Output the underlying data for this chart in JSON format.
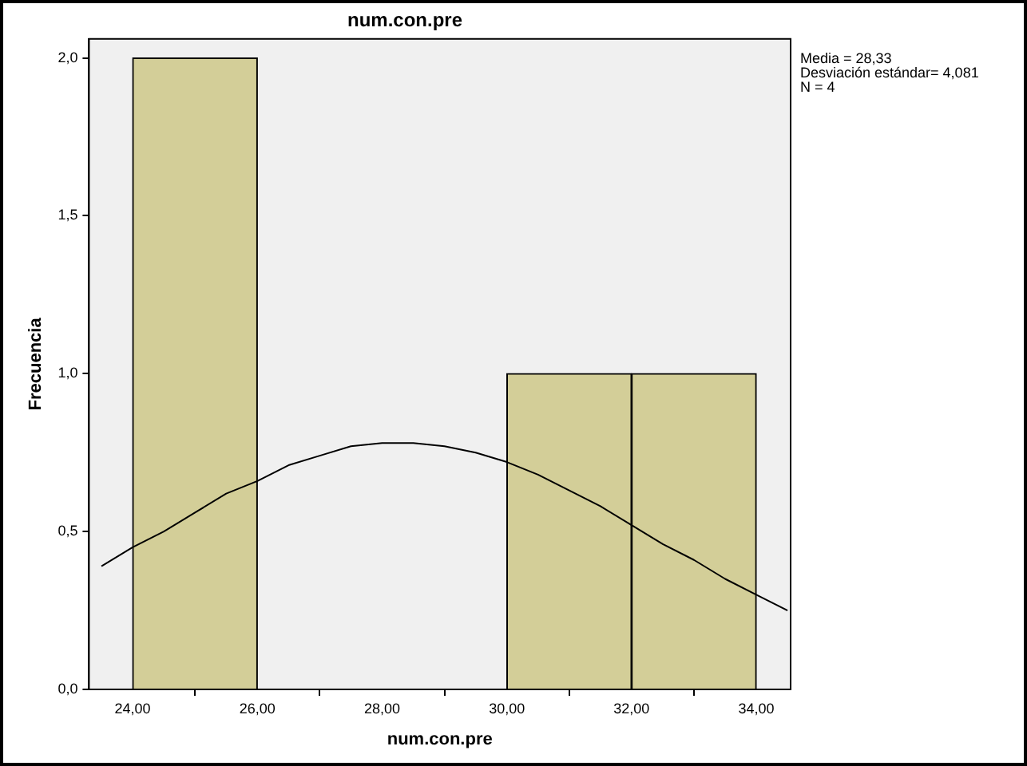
{
  "chart_data": {
    "type": "histogram",
    "title": "num.con.pre",
    "xlabel": "num.con.pre",
    "ylabel": "Frecuencia",
    "bins": [
      24,
      26,
      28,
      30,
      32,
      34
    ],
    "series": [
      {
        "type": "histogram",
        "color": "#d3ce98",
        "values": [
          2,
          0,
          0,
          1,
          1
        ]
      },
      {
        "type": "line",
        "color": "#000000",
        "marker": "none",
        "x": [
          23.5,
          24,
          24.5,
          25,
          25.5,
          26,
          26.5,
          27,
          27.5,
          28,
          28.5,
          29,
          29.5,
          30,
          30.5,
          31,
          31.5,
          32,
          32.5,
          33,
          33.5,
          34,
          34.5
        ],
        "values": [
          0.39,
          0.45,
          0.5,
          0.56,
          0.62,
          0.66,
          0.71,
          0.74,
          0.77,
          0.78,
          0.78,
          0.77,
          0.75,
          0.72,
          0.68,
          0.63,
          0.58,
          0.52,
          0.46,
          0.41,
          0.35,
          0.3,
          0.25
        ]
      }
    ],
    "xlim": [
      23.3,
      34.55
    ],
    "ylim": [
      0,
      2.06
    ],
    "xticks": [
      {
        "value": 24,
        "label": "24,00"
      },
      {
        "value": 26,
        "label": "26,00"
      },
      {
        "value": 28,
        "label": "28,00"
      },
      {
        "value": 30,
        "label": "30,00"
      },
      {
        "value": 32,
        "label": "32,00"
      },
      {
        "value": 34,
        "label": "34,00"
      }
    ],
    "yticks": [
      {
        "value": 0,
        "label": "0,0"
      },
      {
        "value": 0.5,
        "label": "0,5"
      },
      {
        "value": 1,
        "label": "1,0"
      },
      {
        "value": 1.5,
        "label": "1,5"
      },
      {
        "value": 2,
        "label": "2,0"
      }
    ],
    "grid": false,
    "legend": false,
    "annotations": [
      "Media = 28,33",
      "Desviación estándar= 4,081",
      "N = 4"
    ]
  }
}
